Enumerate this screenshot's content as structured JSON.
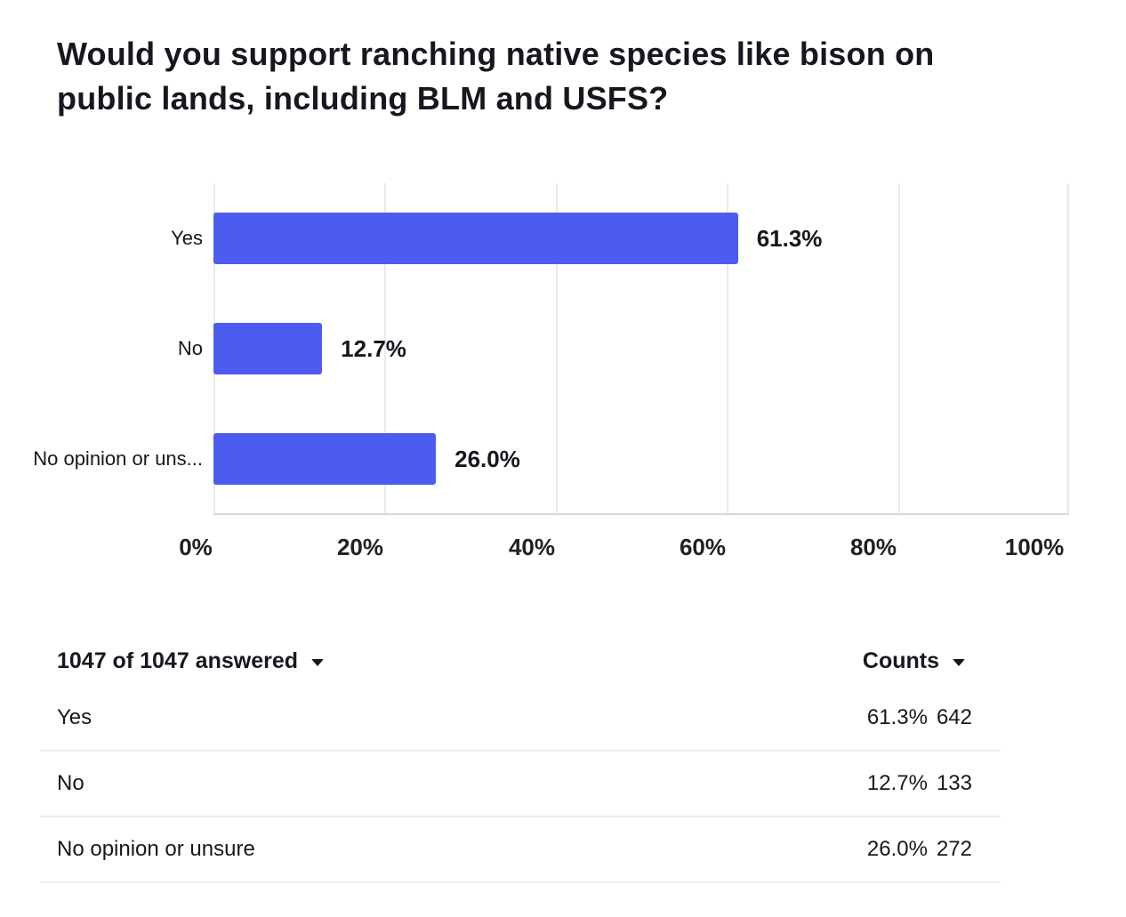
{
  "title": "Would you support ranching native species like bison on public lands, including BLM and USFS?",
  "title_lines": [
    "Would you support ranching native species like bison on",
    "public lands, including BLM and USFS?"
  ],
  "colors": {
    "bar_fill": "#4C5CF0",
    "text": "#17171F",
    "gridline": "#EAEAEA",
    "axis_line": "#D9D9D9",
    "row_divider": "#ECECEC"
  },
  "chart_data": {
    "type": "bar",
    "orientation": "horizontal",
    "categories": [
      "Yes",
      "No",
      "No opinion or uns..."
    ],
    "values": [
      61.3,
      12.7,
      26.0
    ],
    "value_labels": [
      "61.3%",
      "12.7%",
      "26.0%"
    ],
    "x_ticks": [
      "0%",
      "20%",
      "40%",
      "60%",
      "80%",
      "100%"
    ],
    "xlim": [
      0,
      100
    ],
    "grid": "vertical-only",
    "legend": "none"
  },
  "table": {
    "answered_label": "1047 of 1047 answered",
    "counts_label": "Counts",
    "rows": [
      {
        "label": "Yes",
        "percent": "61.3%",
        "count": "642"
      },
      {
        "label": "No",
        "percent": "12.7%",
        "count": "133"
      },
      {
        "label": "No opinion or unsure",
        "percent": "26.0%",
        "count": "272"
      }
    ]
  }
}
